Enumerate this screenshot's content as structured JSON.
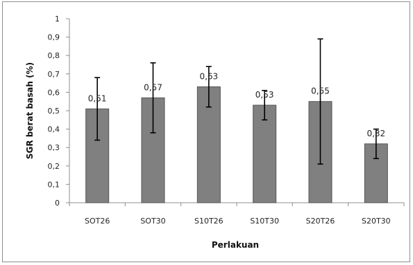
{
  "chart_data": {
    "type": "bar",
    "title": "",
    "xlabel": "Perlakuan",
    "ylabel": "SGR berat basah (%)",
    "ylim": [
      0,
      1
    ],
    "yticks": [
      0,
      0.1,
      0.2,
      0.3,
      0.4,
      0.5,
      0.6,
      0.7,
      0.8,
      0.9,
      1
    ],
    "ytick_labels": [
      "0",
      "0,1",
      "0,2",
      "0,3",
      "0,4",
      "0,5",
      "0,6",
      "0,7",
      "0,8",
      "0,9",
      "1"
    ],
    "categories": [
      "SOT26",
      "SOT30",
      "S10T26",
      "S10T30",
      "S20T26",
      "S20T30"
    ],
    "values": [
      0.51,
      0.57,
      0.63,
      0.53,
      0.55,
      0.32
    ],
    "value_labels": [
      "0,51",
      "0,57",
      "0,63",
      "0,53",
      "0,55",
      "0,32"
    ],
    "error_low": [
      0.34,
      0.38,
      0.52,
      0.45,
      0.21,
      0.24
    ],
    "error_high": [
      0.68,
      0.76,
      0.74,
      0.61,
      0.89,
      0.4
    ],
    "grid": false,
    "legend": "none",
    "bar_color": "#808080",
    "bar_edge_color": "#555555"
  }
}
